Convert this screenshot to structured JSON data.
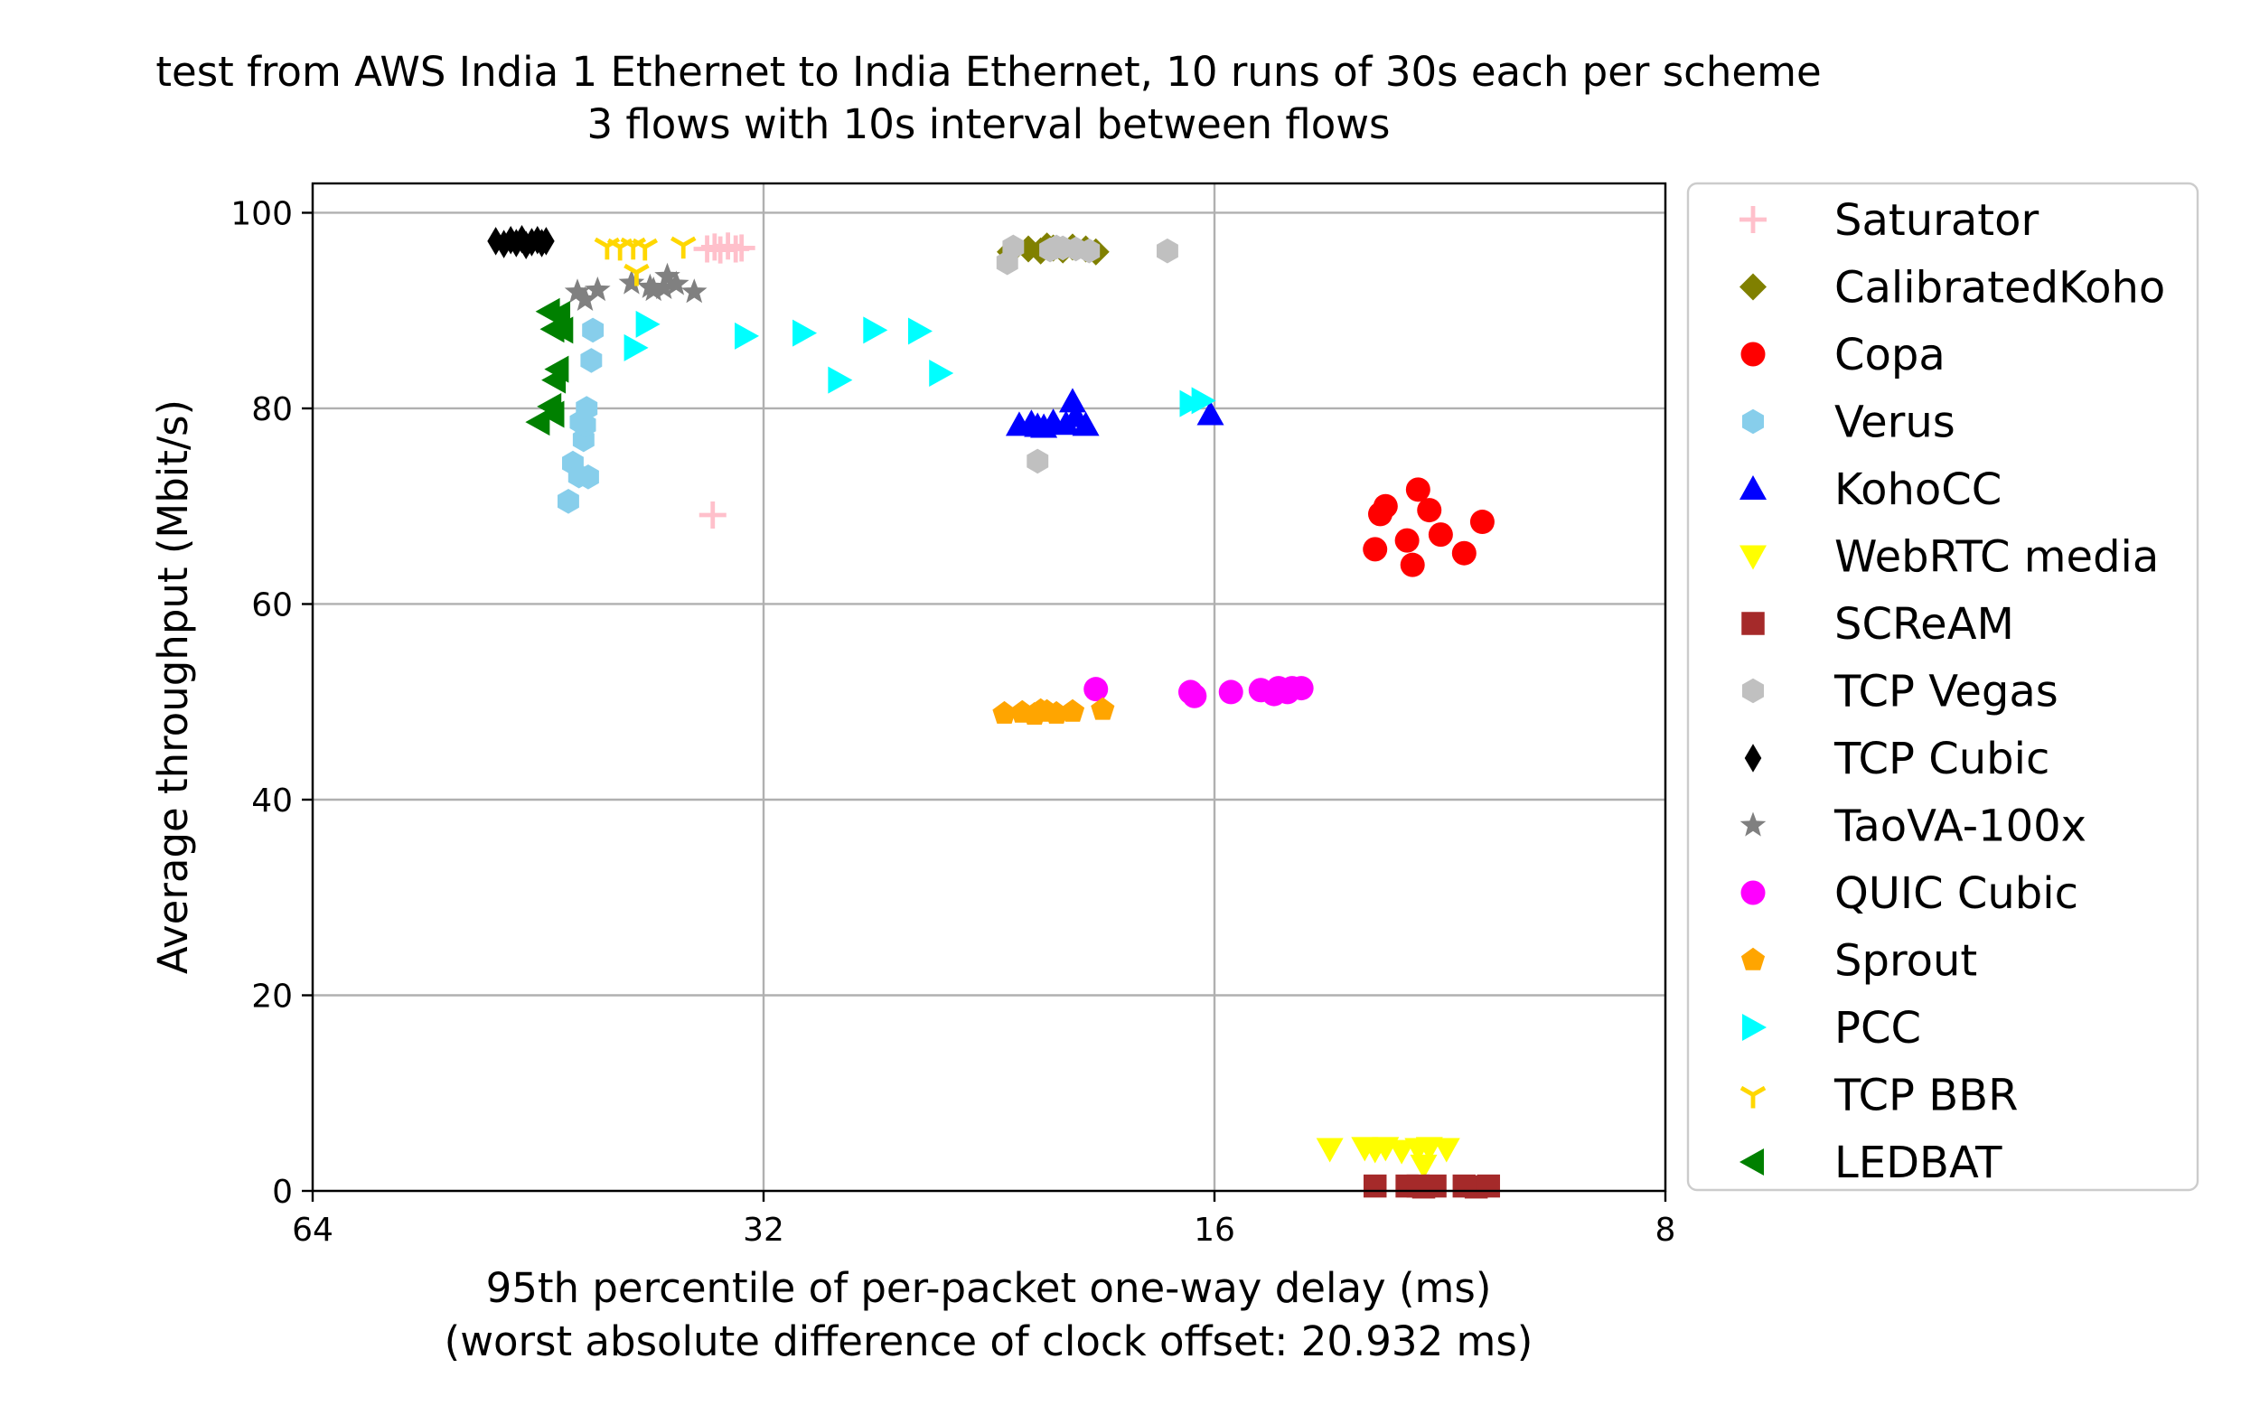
{
  "chart_data": {
    "type": "scatter",
    "title": "test from AWS India 1 Ethernet to India Ethernet, 10 runs of 30s each per scheme",
    "subtitle": "3 flows with 10s interval between flows",
    "xlabel": "95th percentile of per-packet one-way delay (ms)",
    "xlabel2": "(worst absolute difference of clock offset: 20.932 ms)",
    "ylabel": "Average throughput (Mbit/s)",
    "x_scale": "log2-reversed",
    "xlim": [
      64,
      8
    ],
    "ylim": [
      0,
      103
    ],
    "x_ticks": [
      64,
      32,
      16,
      8
    ],
    "x_tick_labels": [
      "64",
      "32",
      "16",
      "8"
    ],
    "y_ticks": [
      0,
      20,
      40,
      60,
      80,
      100
    ],
    "y_tick_labels": [
      "0",
      "20",
      "40",
      "60",
      "80",
      "100"
    ],
    "grid": true,
    "legend_position": "right-outside",
    "series": [
      {
        "name": "Saturator",
        "color": "#ffc0cb",
        "marker": "plus",
        "x": [
          34.9,
          34.5,
          34.2,
          33.8,
          33.4,
          33.1,
          34.6
        ],
        "y": [
          96.3,
          96.5,
          96.2,
          96.6,
          96.3,
          96.4,
          69.1
        ]
      },
      {
        "name": "CalibratedKoho",
        "color": "#808000",
        "marker": "diamond",
        "x": [
          21.9,
          21.3,
          20.9,
          20.5,
          20.2,
          19.9,
          19.5,
          19.2,
          20.7
        ],
        "y": [
          96.0,
          96.3,
          96.1,
          96.4,
          96.2,
          96.5,
          96.3,
          96.0,
          96.6
        ]
      },
      {
        "name": "Copa",
        "color": "#ff0000",
        "marker": "circle",
        "x": [
          12.5,
          12.3,
          12.4,
          11.8,
          11.7,
          11.5,
          11.3,
          10.9,
          10.6,
          11.9
        ],
        "y": [
          65.6,
          70.0,
          69.2,
          64.0,
          71.7,
          69.6,
          67.1,
          65.2,
          68.4,
          66.5
        ]
      },
      {
        "name": "Verus",
        "color": "#87ceeb",
        "marker": "hexagon",
        "x": [
          43.2,
          42.9,
          42.5,
          42.2,
          42.1,
          41.7,
          41.9,
          42.4,
          41.6,
          42.0
        ],
        "y": [
          70.5,
          74.4,
          73.1,
          76.8,
          78.3,
          84.9,
          73.0,
          78.6,
          88.0,
          80.0
        ]
      },
      {
        "name": "KohoCC",
        "color": "#0000ff",
        "marker": "triangle-up",
        "x": [
          21.6,
          21.2,
          20.8,
          20.5,
          20.1,
          19.8,
          19.5,
          19.9,
          16.1,
          21.0
        ],
        "y": [
          78.3,
          78.5,
          78.1,
          78.6,
          78.4,
          79.2,
          78.3,
          80.7,
          79.4,
          78.2
        ]
      },
      {
        "name": "WebRTC media",
        "color": "#ffff00",
        "marker": "triangle-down",
        "x": [
          13.4,
          12.7,
          12.5,
          12.3,
          12.0,
          11.7,
          11.5,
          11.2,
          11.6
        ],
        "y": [
          4.3,
          4.4,
          4.2,
          4.4,
          4.1,
          4.3,
          4.4,
          4.3,
          2.6
        ]
      },
      {
        "name": "SCReAM",
        "color": "#a52a2a",
        "marker": "square",
        "x": [
          12.5,
          11.9,
          11.6,
          11.4,
          10.9,
          10.7,
          10.5,
          11.7
        ],
        "y": [
          0.5,
          0.5,
          0.4,
          0.5,
          0.5,
          0.4,
          0.5,
          0.5
        ]
      },
      {
        "name": "TCP Vegas",
        "color": "#c0c0c0",
        "marker": "hexagon",
        "x": [
          22.0,
          21.8,
          20.6,
          20.2,
          19.8,
          19.4,
          17.2,
          21.0,
          20.4
        ],
        "y": [
          94.9,
          96.5,
          96.2,
          96.4,
          96.3,
          96.1,
          96.1,
          74.6,
          96.5
        ]
      },
      {
        "name": "TCP Cubic",
        "color": "#000000",
        "marker": "thin-diamond",
        "x": [
          48.3,
          47.7,
          47.2,
          46.8,
          46.4,
          46.1,
          45.7,
          45.3,
          45.0,
          44.7
        ],
        "y": [
          97.1,
          96.8,
          97.2,
          96.9,
          97.3,
          96.7,
          97.0,
          97.2,
          96.9,
          97.1
        ]
      },
      {
        "name": "TaoVA-100x",
        "color": "#808080",
        "marker": "star",
        "x": [
          42.6,
          42.1,
          41.3,
          39.2,
          37.9,
          37.3,
          37.1,
          36.6,
          35.6,
          38.1
        ],
        "y": [
          91.9,
          91.1,
          92.1,
          92.8,
          92.1,
          92.3,
          93.5,
          92.7,
          91.9,
          92.4
        ]
      },
      {
        "name": "QUIC Cubic",
        "color": "#ff00ff",
        "marker": "circle",
        "x": [
          19.2,
          16.6,
          16.5,
          15.6,
          14.9,
          14.5,
          14.2,
          14.0,
          14.6,
          14.3
        ],
        "y": [
          51.3,
          51.0,
          50.6,
          51.0,
          51.2,
          51.4,
          51.4,
          51.4,
          50.8,
          51.0
        ]
      },
      {
        "name": "Sprout",
        "color": "#ffa500",
        "marker": "pentagon",
        "x": [
          22.1,
          21.5,
          21.1,
          20.9,
          20.7,
          20.4,
          19.9,
          19.0
        ],
        "y": [
          48.8,
          48.9,
          48.7,
          49.1,
          49.0,
          48.8,
          49.0,
          49.2
        ]
      },
      {
        "name": "PCC",
        "color": "#00ffff",
        "marker": "triangle-right",
        "x": [
          39.0,
          38.3,
          32.9,
          30.1,
          28.5,
          27.0,
          25.2,
          24.4,
          16.6,
          16.3
        ],
        "y": [
          86.2,
          88.6,
          87.4,
          87.7,
          82.9,
          88.0,
          87.9,
          83.6,
          80.5,
          80.8
        ]
      },
      {
        "name": "TCP BBR",
        "color": "#ffd700",
        "marker": "tri-down",
        "x": [
          40.7,
          39.9,
          39.1,
          38.4,
          36.2,
          38.9
        ],
        "y": [
          96.6,
          96.5,
          96.6,
          96.5,
          96.7,
          93.9
        ]
      },
      {
        "name": "LEDBAT",
        "color": "#008000",
        "marker": "triangle-left",
        "x": [
          45.2,
          44.4,
          44.2,
          43.9,
          44.1,
          43.6,
          43.8,
          44.2,
          44.5
        ],
        "y": [
          78.6,
          80.2,
          79.4,
          84.0,
          82.9,
          88.0,
          89.6,
          88.1,
          89.9
        ]
      }
    ]
  }
}
